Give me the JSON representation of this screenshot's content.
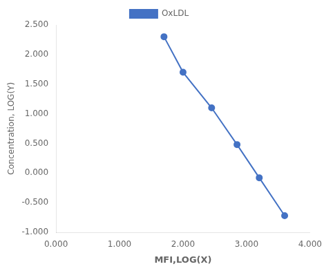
{
  "chart_data": {
    "type": "line",
    "xlabel": "MFI,LOG(X)",
    "ylabel": "Concentration, LOG(Y)",
    "x": [
      1.7,
      2.0,
      2.45,
      2.85,
      3.2,
      3.6
    ],
    "series": [
      {
        "name": "OxLDL",
        "color": "#4472C4",
        "marker": "o",
        "values": [
          2.3,
          1.7,
          1.1,
          0.48,
          -0.08,
          -0.72
        ]
      }
    ],
    "xlim": [
      0.0,
      4.0
    ],
    "ylim": [
      -1.0,
      2.5
    ],
    "xticks": [
      {
        "value": 0.0,
        "label": "0.000"
      },
      {
        "value": 1.0,
        "label": "1.000"
      },
      {
        "value": 2.0,
        "label": "2.000"
      },
      {
        "value": 3.0,
        "label": "3.000"
      },
      {
        "value": 4.0,
        "label": "4.000"
      }
    ],
    "yticks": [
      {
        "value": -1.0,
        "label": "-1.000"
      },
      {
        "value": -0.5,
        "label": "-0.500"
      },
      {
        "value": 0.0,
        "label": "0.000"
      },
      {
        "value": 0.5,
        "label": "0.500"
      },
      {
        "value": 1.0,
        "label": "1.000"
      },
      {
        "value": 1.5,
        "label": "1.500"
      },
      {
        "value": 2.0,
        "label": "2.000"
      },
      {
        "value": 2.5,
        "label": "2.500"
      }
    ],
    "grid": false,
    "legend": "top"
  }
}
